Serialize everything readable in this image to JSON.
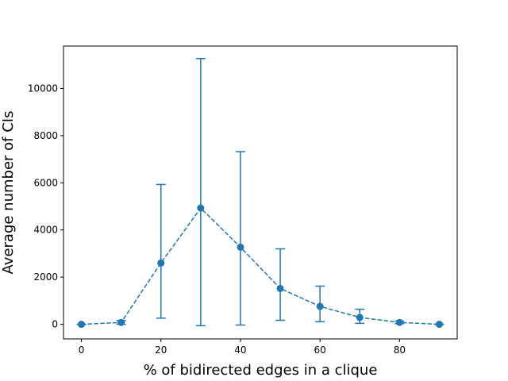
{
  "chart_data": {
    "type": "line",
    "title": "",
    "xlabel": "% of bidirected edges in a clique",
    "ylabel": "Average number of CIs",
    "xlim": [
      -4.5,
      94.5
    ],
    "ylim": [
      -620,
      11800
    ],
    "xticks": [
      0,
      20,
      40,
      60,
      80
    ],
    "yticks": [
      0,
      2000,
      4000,
      6000,
      8000,
      10000
    ],
    "grid": false,
    "legend": "none",
    "series": [
      {
        "x": [
          0,
          10,
          20,
          30,
          40,
          50,
          60,
          70,
          80,
          90
        ],
        "y": [
          0,
          80,
          2600,
          4930,
          3270,
          1520,
          760,
          290,
          80,
          0
        ],
        "err_low": [
          0,
          0,
          260,
          -60,
          -30,
          170,
          110,
          40,
          30,
          0
        ],
        "err_high": [
          0,
          160,
          5930,
          11270,
          7320,
          3200,
          1620,
          640,
          140,
          0
        ],
        "color": "#1f77b4",
        "linestyle": "dashed",
        "marker": "circle"
      }
    ]
  }
}
